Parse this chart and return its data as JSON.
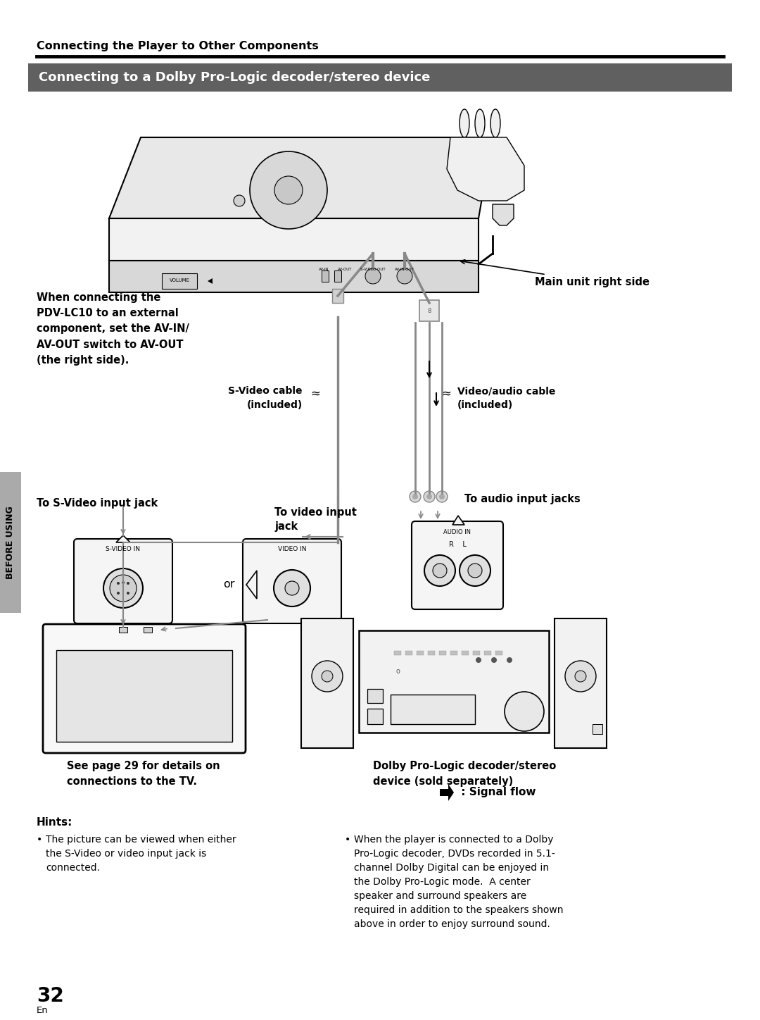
{
  "page_bg": "#ffffff",
  "header_text": "Connecting the Player to Other Components",
  "section_text": "Connecting to a Dolby Pro-Logic decoder/stereo device",
  "section_bg": "#606060",
  "section_text_color": "#ffffff",
  "main_unit_label": "Main unit right side",
  "label_when_connecting": "When connecting the\nPDV-LC10 to an external\ncomponent, set the AV-IN/\nAV-OUT switch to AV-OUT\n(the right side).",
  "label_svideo_cable": "S-Video cable\n(included)",
  "label_video_audio_cable": "Video/audio cable\n(included)",
  "label_svideo_jack": "To S-Video input jack",
  "label_video_jack": "To video input\njack",
  "label_audio_jacks": "To audio input jacks",
  "label_or": "or",
  "label_svideo_in": "S-VIDEO IN",
  "label_video_in": "VIDEO IN",
  "label_audio_in": "AUDIO IN",
  "label_rl": "R    L",
  "label_see_page": "See page 29 for details on\nconnections to the TV.",
  "label_dolby": "Dolby Pro-Logic decoder/stereo\ndevice (sold separately)",
  "label_signal_flow": " : Signal flow",
  "hints_title": "Hints:",
  "hint1": "The picture can be viewed when either\nthe S-Video or video input jack is\nconnected.",
  "hint2": "When the player is connected to a Dolby\nPro-Logic decoder, DVDs recorded in 5.1-\nchannel Dolby Digital can be enjoyed in\nthe Dolby Pro-Logic mode.  A center\nspeaker and surround speakers are\nrequired in addition to the speakers shown\nabove in order to enjoy surround sound.",
  "page_number": "32",
  "page_en": "En",
  "side_label": "BEFORE USING"
}
